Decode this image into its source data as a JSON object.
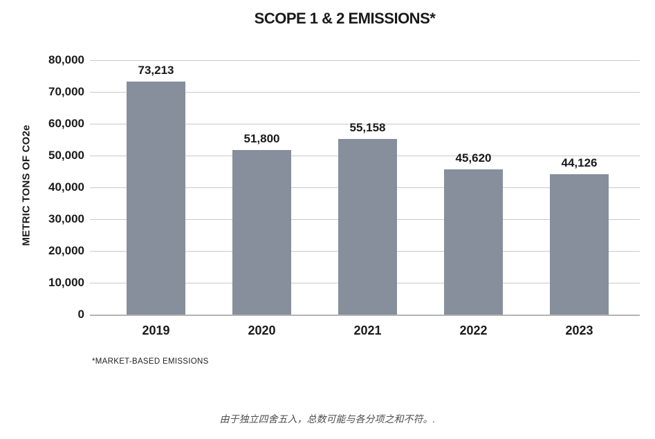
{
  "page": {
    "background": "#ffffff"
  },
  "chart_data": {
    "type": "bar",
    "title": "SCOPE 1 & 2 EMISSIONS*",
    "ylabel": "METRIC TONS OF CO2e",
    "xlabel": "",
    "categories": [
      "2019",
      "2020",
      "2021",
      "2022",
      "2023"
    ],
    "values": [
      73213,
      51800,
      55158,
      45620,
      44126
    ],
    "value_labels": [
      "73,213",
      "51,800",
      "55,158",
      "45,620",
      "44,126"
    ],
    "ylim": [
      0,
      80000
    ],
    "ytick_step": 10000,
    "ytick_labels": [
      "0",
      "10,000",
      "20,000",
      "30,000",
      "40,000",
      "50,000",
      "60,000",
      "70,000",
      "80,000"
    ],
    "grid": true,
    "legend_position": "none",
    "footnote": "*MARKET-BASED EMISSIONS",
    "caption": "由于独立四舍五入，总数可能与各分项之和不符。.",
    "colors": {
      "bar": "#868F9B",
      "gridline": "#C9C9C9",
      "baseline": "#B3B3B3",
      "text": "#1A1A1A",
      "caption_text": "#4D4D4D"
    }
  }
}
